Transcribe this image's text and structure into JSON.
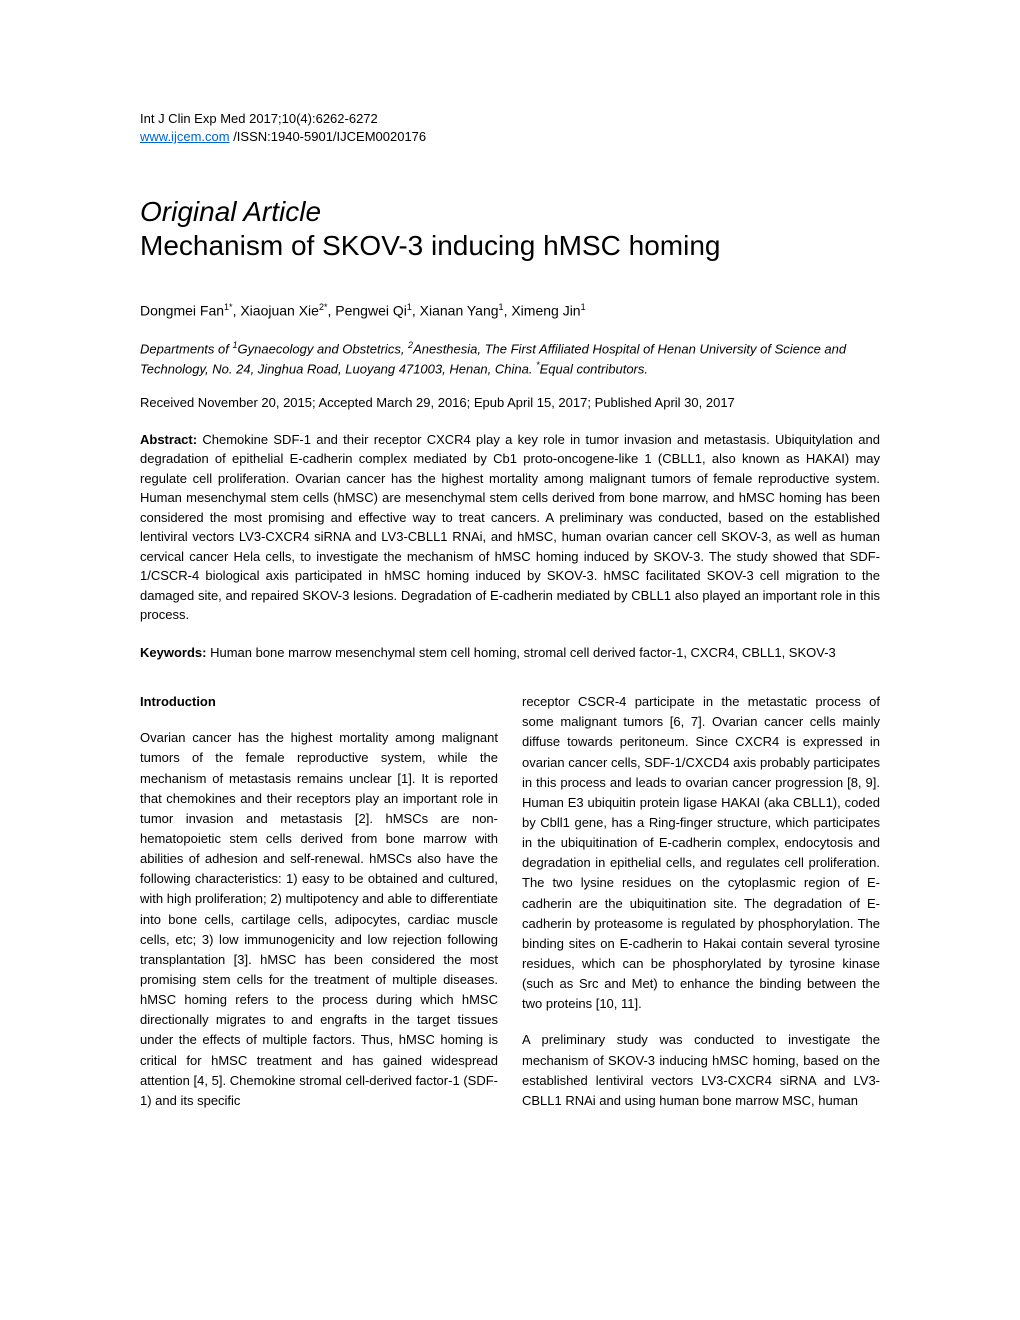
{
  "header": {
    "journal_ref": "Int J Clin Exp Med 2017;10(4):6262-6272",
    "website": "www.ijcem.com",
    "issn": " /ISSN:1940-5901/IJCEM0020176"
  },
  "article_type": "Original Article",
  "title": "Mechanism of SKOV-3 inducing hMSC homing",
  "authors_html": "Dongmei Fan<sup>1*</sup>, Xiaojuan Xie<sup>2*</sup>, Pengwei Qi<sup>1</sup>, Xianan Yang<sup>1</sup>, Ximeng Jin<sup>1</sup>",
  "affiliation_html": "Departments of <sup>1</sup>Gynaecology and Obstetrics, <sup>2</sup>Anesthesia, The First Affiliated Hospital of Henan University of Science and Technology, No. 24, Jinghua Road, Luoyang 471003, Henan, China. <sup>*</sup>Equal contributors.",
  "dates": "Received November 20, 2015; Accepted March 29, 2016; Epub April 15, 2017; Published April 30, 2017",
  "abstract_label": "Abstract:",
  "abstract_text": " Chemokine SDF-1 and their receptor CXCR4 play a key role in tumor invasion and metastasis. Ubiquitylation and degradation of epithelial E-cadherin complex mediated by Cb1 proto-oncogene-like 1 (CBLL1, also known as HAKAI) may regulate cell proliferation. Ovarian cancer has the highest mortality among malignant tumors of female reproductive system. Human mesenchymal stem cells (hMSC) are mesenchymal stem cells derived from bone marrow, and hMSC homing has been considered the most promising and effective way to treat cancers. A preliminary was conducted, based on the established lentiviral vectors LV3-CXCR4 siRNA and LV3-CBLL1 RNAi, and hMSC, human ovarian cancer cell SKOV-3, as well as human cervical cancer Hela cells, to investigate the mechanism of hMSC homing induced by SKOV-3. The study showed that SDF-1/CSCR-4 biological axis participated in hMSC homing induced by SKOV-3. hMSC facilitated SKOV-3 cell migration to the damaged site, and repaired SKOV-3 lesions. Degradation of E-cadherin mediated by CBLL1 also played an important role in this process.",
  "keywords_label": "Keywords:",
  "keywords_text": " Human bone marrow mesenchymal stem cell homing, stromal cell derived factor-1, CXCR4, CBLL1, SKOV-3",
  "section_heading": "Introduction",
  "col1_para1": "Ovarian cancer has the highest mortality among malignant tumors of the female reproductive system, while the mechanism of metastasis remains unclear [1]. It is reported that chemokines and their receptors play an important role in tumor invasion and metastasis [2]. hMSCs are non-hematopoietic stem cells derived from bone marrow with abilities of adhesion and self-renewal. hMSCs also have the following characteristics: 1) easy to be obtained and cultured, with high proliferation; 2) multipotency and able to differentiate into bone cells, cartilage cells, adipocytes, cardiac muscle cells, etc; 3) low immunogenicity and low rejection following transplantation [3]. hMSC has been considered the most promising stem cells for the treatment of multiple diseases. hMSC homing refers to the process during which hMSC directionally migrates to and engrafts in the target tissues under the effects of multiple factors. Thus, hMSC homing is critical for hMSC treatment and has gained widespread attention [4, 5]. Chemokine stromal cell-derived factor-1 (SDF-1) and its specific",
  "col2_para1": "receptor CSCR-4 participate in the metastatic process of some malignant tumors [6, 7]. Ovarian cancer cells mainly diffuse towards peritoneum. Since CXCR4 is expressed in ovarian cancer cells, SDF-1/CXCD4 axis probably participates in this process and leads to ovarian cancer progression [8, 9]. Human E3 ubiquitin protein ligase HAKAI (aka CBLL1), coded by Cbll1 gene, has a Ring-finger structure, which participates in the ubiquitination of E-cadherin complex, endocytosis and degradation in epithelial cells, and regulates cell proliferation. The two lysine residues on the cytoplasmic region of E-cadherin are the ubiquitination site. The degradation of E-cadherin by proteasome is regulated by phosphorylation. The binding sites on E-cadherin to Hakai contain several tyrosine residues, which can be phosphorylated by tyrosine kinase (such as Src and Met) to enhance the binding between the two proteins [10, 11].",
  "col2_para2": "A preliminary study was conducted to investigate the mechanism of SKOV-3 inducing hMSC homing, based on the established lentiviral vectors LV3-CXCR4 siRNA and LV3-CBLL1 RNAi and using human bone marrow MSC, human"
}
